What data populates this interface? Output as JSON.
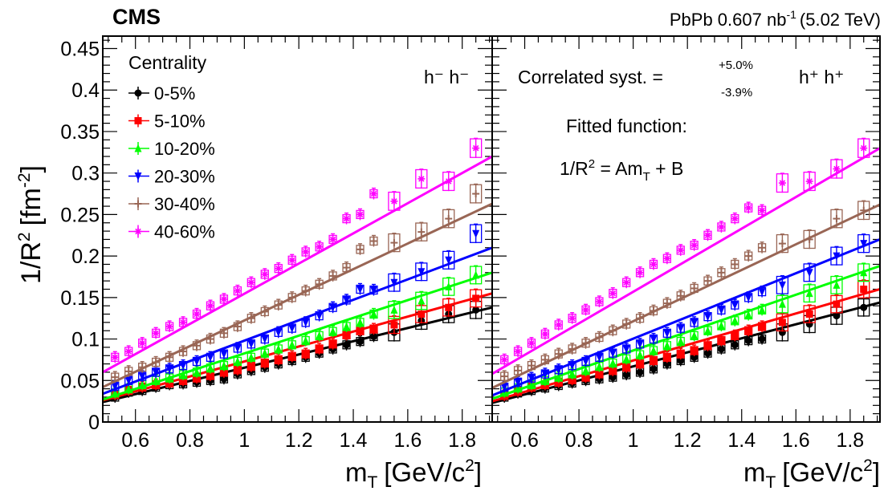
{
  "header": {
    "experiment": "CMS",
    "lumi_prefix": "PbPb 0.607 nb",
    "lumi_exponent": "-1",
    "lumi_suffix": "(5.02 TeV)"
  },
  "axes": {
    "y_label_main": "1/R",
    "y_label_sup1": "2",
    "y_label_unit": "[fm",
    "y_label_sup2": "-2",
    "y_label_close": "]",
    "x_label_main": "m",
    "x_label_sub": "T",
    "x_label_unit": "[GeV/c",
    "x_label_sup": "2",
    "x_label_close": "]"
  },
  "legend": {
    "title": "Centrality",
    "entries": [
      "0-5%",
      "5-10%",
      "10-20%",
      "20-30%",
      "30-40%",
      "40-60%"
    ]
  },
  "annotations": {
    "left_particle": "h⁻ h⁻",
    "right_particle": "h⁺ h⁺",
    "correlated_syst": "Correlated syst. =",
    "syst_up": "+5.0%",
    "syst_down": "-3.9%",
    "fitted_title": "Fitted function:",
    "fit_lhs": "1/R",
    "fit_lhs_sup": "2",
    "fit_mid": " = Am",
    "fit_sub": "T",
    "fit_tail": " + B"
  },
  "chart_data": [
    {
      "type": "scatter",
      "panel": "left",
      "label": "h⁻ h⁻",
      "x": [
        0.525,
        0.575,
        0.625,
        0.675,
        0.725,
        0.775,
        0.825,
        0.875,
        0.925,
        0.975,
        1.025,
        1.075,
        1.125,
        1.175,
        1.225,
        1.275,
        1.325,
        1.375,
        1.425,
        1.475,
        1.55,
        1.65,
        1.75,
        1.85
      ],
      "xlim": [
        0.48,
        1.91
      ],
      "ylim": [
        0,
        0.465
      ],
      "xticks": [
        "0.6",
        "0.8",
        "1",
        "1.2",
        "1.4",
        "1.6",
        "1.8"
      ],
      "yticks": [
        "0",
        "0.05",
        "0.1",
        "0.15",
        "0.2",
        "0.25",
        "0.3",
        "0.35",
        "0.4",
        "0.45"
      ],
      "series": [
        {
          "name": "0-5%",
          "color": "#000000",
          "marker": "circle",
          "values": [
            0.03,
            0.036,
            0.038,
            0.042,
            0.045,
            0.046,
            0.048,
            0.05,
            0.052,
            0.058,
            0.062,
            0.066,
            0.07,
            0.074,
            0.078,
            0.083,
            0.088,
            0.093,
            0.097,
            0.103,
            0.108,
            0.122,
            0.13,
            0.135
          ],
          "fit": [
            0.024,
            0.138
          ]
        },
        {
          "name": "5-10%",
          "color": "#ff0000",
          "marker": "square",
          "values": [
            0.033,
            0.038,
            0.042,
            0.045,
            0.047,
            0.05,
            0.053,
            0.056,
            0.06,
            0.063,
            0.067,
            0.071,
            0.075,
            0.079,
            0.082,
            0.088,
            0.094,
            0.105,
            0.11,
            0.112,
            0.117,
            0.13,
            0.138,
            0.149
          ],
          "fit": [
            0.026,
            0.155
          ]
        },
        {
          "name": "10-20%",
          "color": "#00ff00",
          "marker": "triangle-up",
          "values": [
            0.035,
            0.04,
            0.045,
            0.05,
            0.053,
            0.057,
            0.06,
            0.065,
            0.068,
            0.073,
            0.078,
            0.083,
            0.088,
            0.093,
            0.098,
            0.104,
            0.109,
            0.115,
            0.12,
            0.13,
            0.135,
            0.146,
            0.163,
            0.177
          ],
          "fit": [
            0.027,
            0.18
          ]
        },
        {
          "name": "20-30%",
          "color": "#0000ff",
          "marker": "triangle-down",
          "values": [
            0.043,
            0.05,
            0.055,
            0.06,
            0.064,
            0.068,
            0.073,
            0.078,
            0.082,
            0.089,
            0.094,
            0.1,
            0.108,
            0.113,
            0.12,
            0.128,
            0.138,
            0.147,
            0.16,
            0.159,
            0.168,
            0.181,
            0.195,
            0.227
          ],
          "fit": [
            0.034,
            0.21
          ]
        },
        {
          "name": "30-40%",
          "color": "#996655",
          "marker": "plus",
          "values": [
            0.054,
            0.061,
            0.066,
            0.072,
            0.078,
            0.085,
            0.092,
            0.1,
            0.107,
            0.115,
            0.125,
            0.133,
            0.141,
            0.15,
            0.158,
            0.166,
            0.176,
            0.186,
            0.208,
            0.218,
            0.216,
            0.229,
            0.245,
            0.275
          ],
          "fit": [
            0.042,
            0.263
          ]
        },
        {
          "name": "40-60%",
          "color": "#ff00ff",
          "marker": "star",
          "values": [
            0.078,
            0.085,
            0.095,
            0.107,
            0.115,
            0.12,
            0.13,
            0.14,
            0.148,
            0.158,
            0.168,
            0.178,
            0.185,
            0.195,
            0.205,
            0.211,
            0.22,
            0.245,
            0.25,
            0.275,
            0.266,
            0.293,
            0.29,
            0.33
          ],
          "fit": [
            0.06,
            0.32
          ]
        }
      ]
    },
    {
      "type": "scatter",
      "panel": "right",
      "label": "h⁺ h⁺",
      "x": [
        0.525,
        0.575,
        0.625,
        0.675,
        0.725,
        0.775,
        0.825,
        0.875,
        0.925,
        0.975,
        1.025,
        1.075,
        1.125,
        1.175,
        1.225,
        1.275,
        1.325,
        1.375,
        1.425,
        1.475,
        1.55,
        1.65,
        1.75,
        1.85
      ],
      "xlim": [
        0.48,
        1.91
      ],
      "ylim": [
        0,
        0.465
      ],
      "xticks": [
        "0.6",
        "0.8",
        "1",
        "1.2",
        "1.4",
        "1.6",
        "1.8"
      ],
      "series": [
        {
          "name": "0-5%",
          "color": "#000000",
          "marker": "circle",
          "values": [
            0.03,
            0.035,
            0.038,
            0.041,
            0.044,
            0.047,
            0.05,
            0.052,
            0.054,
            0.057,
            0.06,
            0.064,
            0.07,
            0.074,
            0.078,
            0.083,
            0.088,
            0.093,
            0.098,
            0.1,
            0.108,
            0.118,
            0.128,
            0.138
          ],
          "fit": [
            0.023,
            0.144
          ]
        },
        {
          "name": "5-10%",
          "color": "#ff0000",
          "marker": "square",
          "values": [
            0.032,
            0.037,
            0.042,
            0.045,
            0.048,
            0.051,
            0.054,
            0.058,
            0.062,
            0.066,
            0.07,
            0.074,
            0.078,
            0.082,
            0.086,
            0.092,
            0.098,
            0.104,
            0.11,
            0.115,
            0.12,
            0.13,
            0.142,
            0.16
          ],
          "fit": [
            0.025,
            0.16
          ]
        },
        {
          "name": "10-20%",
          "color": "#00ff00",
          "marker": "triangle-up",
          "values": [
            0.036,
            0.041,
            0.045,
            0.05,
            0.054,
            0.058,
            0.062,
            0.067,
            0.071,
            0.076,
            0.081,
            0.086,
            0.092,
            0.097,
            0.104,
            0.11,
            0.116,
            0.122,
            0.129,
            0.135,
            0.142,
            0.155,
            0.165,
            0.18
          ],
          "fit": [
            0.028,
            0.188
          ]
        },
        {
          "name": "20-30%",
          "color": "#0000ff",
          "marker": "triangle-down",
          "values": [
            0.042,
            0.048,
            0.053,
            0.058,
            0.063,
            0.068,
            0.073,
            0.078,
            0.083,
            0.088,
            0.094,
            0.1,
            0.107,
            0.113,
            0.12,
            0.127,
            0.135,
            0.141,
            0.15,
            0.157,
            0.165,
            0.18,
            0.2,
            0.215
          ],
          "fit": [
            0.032,
            0.22
          ]
        },
        {
          "name": "30-40%",
          "color": "#996655",
          "marker": "plus",
          "values": [
            0.055,
            0.062,
            0.068,
            0.075,
            0.082,
            0.088,
            0.095,
            0.102,
            0.11,
            0.118,
            0.125,
            0.134,
            0.143,
            0.152,
            0.161,
            0.17,
            0.18,
            0.19,
            0.2,
            0.21,
            0.215,
            0.22,
            0.245,
            0.255
          ],
          "fit": [
            0.041,
            0.262
          ]
        },
        {
          "name": "40-60%",
          "color": "#ff00ff",
          "marker": "star",
          "values": [
            0.075,
            0.085,
            0.095,
            0.106,
            0.117,
            0.125,
            0.135,
            0.145,
            0.155,
            0.168,
            0.18,
            0.19,
            0.197,
            0.207,
            0.213,
            0.225,
            0.235,
            0.245,
            0.258,
            0.255,
            0.288,
            0.29,
            0.305,
            0.33
          ],
          "fit": [
            0.058,
            0.33
          ]
        }
      ]
    }
  ]
}
